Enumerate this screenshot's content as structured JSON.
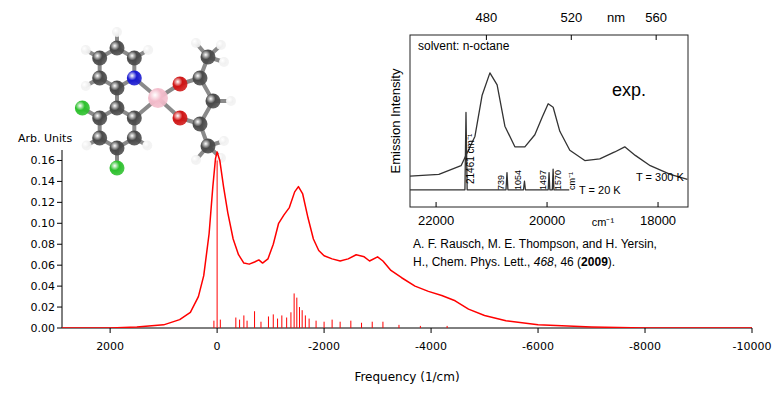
{
  "chart_data": [
    {
      "type": "line",
      "y_label": "Arb. Units",
      "x_label": "Frequency (1/cm)",
      "xlim": [
        2900,
        -10000
      ],
      "xticks": [
        2000,
        0,
        -2000,
        -4000,
        -6000,
        -8000,
        -10000
      ],
      "ylim": [
        0,
        0.17
      ],
      "yticks": [
        {
          "value": 0,
          "label": "0.00"
        },
        {
          "value": 0.02,
          "label": "0.02"
        },
        {
          "value": 0.04,
          "label": "0.04"
        },
        {
          "value": 0.06,
          "label": "0.06"
        },
        {
          "value": 0.08,
          "label": "0.08"
        },
        {
          "value": 0.1,
          "label": "0.10"
        },
        {
          "value": 0.12,
          "label": "0.12"
        },
        {
          "value": 0.14,
          "label": "0.14"
        },
        {
          "value": 0.16,
          "label": "0.16"
        }
      ],
      "series": [
        {
          "type": "line",
          "color": "#ff0000",
          "x": [
            2900,
            2000,
            1500,
            1000,
            700,
            500,
            350,
            250,
            150,
            80,
            30,
            0,
            -50,
            -120,
            -200,
            -300,
            -400,
            -500,
            -600,
            -700,
            -780,
            -850,
            -950,
            -1050,
            -1150,
            -1250,
            -1350,
            -1450,
            -1520,
            -1600,
            -1700,
            -1800,
            -1900,
            -2000,
            -2150,
            -2300,
            -2450,
            -2600,
            -2750,
            -2850,
            -3000,
            -3100,
            -3250,
            -3450,
            -3700,
            -3950,
            -4200,
            -4450,
            -4700,
            -5000,
            -5400,
            -6000,
            -7000,
            -8000,
            -10000
          ],
          "values": [
            0,
            0,
            0.001,
            0.003,
            0.008,
            0.015,
            0.03,
            0.05,
            0.09,
            0.135,
            0.162,
            0.168,
            0.16,
            0.135,
            0.11,
            0.085,
            0.07,
            0.062,
            0.061,
            0.063,
            0.065,
            0.062,
            0.066,
            0.08,
            0.1,
            0.108,
            0.115,
            0.13,
            0.135,
            0.128,
            0.105,
            0.085,
            0.074,
            0.069,
            0.066,
            0.064,
            0.066,
            0.07,
            0.068,
            0.064,
            0.068,
            0.064,
            0.055,
            0.048,
            0.04,
            0.035,
            0.031,
            0.026,
            0.018,
            0.012,
            0.007,
            0.003,
            0.001,
            0,
            0
          ]
        },
        {
          "type": "stem",
          "color": "#ff0000",
          "x": [
            60,
            0,
            -60,
            -350,
            -420,
            -500,
            -560,
            -700,
            -820,
            -960,
            -1050,
            -1130,
            -1210,
            -1300,
            -1380,
            -1440,
            -1490,
            -1540,
            -1590,
            -1650,
            -1720,
            -1850,
            -2000,
            -2150,
            -2300,
            -2500,
            -2700,
            -2900,
            -3100,
            -3400,
            -3800,
            -4300
          ],
          "values": [
            0.007,
            0.16,
            0.008,
            0.01,
            0.008,
            0.012,
            0.007,
            0.016,
            0.006,
            0.011,
            0.013,
            0.009,
            0.012,
            0.01,
            0.015,
            0.033,
            0.029,
            0.02,
            0.017,
            0.012,
            0.009,
            0.007,
            0.006,
            0.008,
            0.006,
            0.007,
            0.005,
            0.006,
            0.006,
            0.003,
            0.002,
            0.002
          ]
        }
      ]
    },
    {
      "type": "line",
      "y_label": "Emission Intensity",
      "x_label": "cm⁻¹",
      "x2_label": "nm",
      "xlim": [
        22470,
        17460
      ],
      "xticks": [
        22000,
        20000,
        18000
      ],
      "x2lim": [
        444,
        575
      ],
      "x2ticks": [
        480,
        520,
        560
      ],
      "ylim": [
        0,
        1
      ],
      "tick_labels": "x",
      "annotations": [
        "solvent: n-octane",
        "exp.",
        "21461 cm⁻¹",
        "739",
        "1054",
        "1497",
        "1570",
        "cm⁻¹"
      ],
      "series": [
        {
          "name": "T = 300 K",
          "color": "#333333",
          "x": [
            22470,
            21950,
            21550,
            21300,
            21170,
            21030,
            20900,
            20760,
            20580,
            20400,
            20220,
            20090,
            19980,
            19890,
            19770,
            19590,
            19320,
            19050,
            18780,
            18600,
            18410,
            18140,
            17780,
            17470
          ],
          "values": [
            0.18,
            0.19,
            0.24,
            0.41,
            0.65,
            0.78,
            0.71,
            0.47,
            0.35,
            0.35,
            0.42,
            0.52,
            0.6,
            0.58,
            0.44,
            0.33,
            0.27,
            0.28,
            0.32,
            0.35,
            0.3,
            0.24,
            0.19,
            0.16
          ]
        },
        {
          "name": "T = 20 K",
          "color": "#333333",
          "x": [
            22470,
            21480,
            21461,
            21440,
            20740,
            20722,
            20705,
            20425,
            20407,
            20390,
            19980,
            19964,
            19950,
            19905,
            19891,
            19877,
            19600
          ],
          "values": [
            0.1,
            0.1,
            0.55,
            0.1,
            0.1,
            0.2,
            0.1,
            0.1,
            0.15,
            0.1,
            0.1,
            0.2,
            0.1,
            0.1,
            0.22,
            0.1,
            0.1
          ]
        }
      ]
    }
  ],
  "citation": [
    [
      {
        "text": "A. F. Rausch, M. E. Thompson, and H. Yersin,"
      }
    ],
    [
      {
        "text": "H., Chem. Phys. Lett., "
      },
      {
        "text": "468",
        "style": "italic"
      },
      {
        "text": ", 46 ("
      },
      {
        "text": "2009",
        "style": "bold"
      },
      {
        "text": ")."
      }
    ]
  ]
}
